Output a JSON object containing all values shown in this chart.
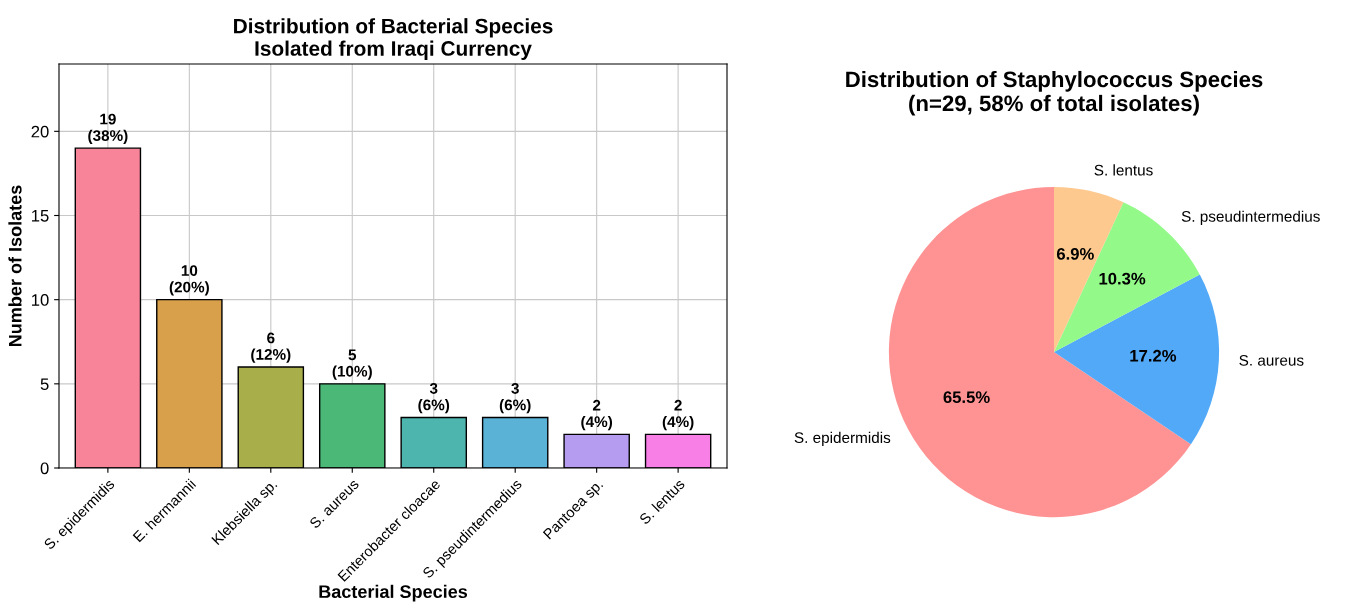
{
  "chart_data": [
    {
      "type": "bar",
      "title": "Distribution of Bacterial Species\nIsolated from Iraqi Currency",
      "xlabel": "Bacterial Species",
      "ylabel": "Number of Isolates",
      "categories": [
        "S. epidermidis",
        "E. hermannii",
        "Klebsiella sp.",
        "S. aureus",
        "Enterobacter cloacae",
        "S. pseudintermedius",
        "Pantoea sp.",
        "S. lentus"
      ],
      "values": [
        19,
        10,
        6,
        5,
        3,
        3,
        2,
        2
      ],
      "value_labels": [
        "19\n(38%)",
        "10\n(20%)",
        "6\n(12%)",
        "5\n(10%)",
        "3\n(6%)",
        "3\n(6%)",
        "2\n(4%)",
        "2\n(4%)"
      ],
      "colors": [
        "#f8849a",
        "#d9a04c",
        "#a8ae4a",
        "#4cb878",
        "#4db5ad",
        "#5ab2d6",
        "#b59cf0",
        "#f77fe5"
      ],
      "ylim": [
        0,
        24
      ],
      "yticks": [
        0,
        5,
        10,
        15,
        20
      ],
      "grid": true
    },
    {
      "type": "pie",
      "title": "Distribution of Staphylococcus Species\n(n=29, 58% of total isolates)",
      "categories": [
        "S. epidermidis",
        "S. aureus",
        "S. pseudintermedius",
        "S. lentus"
      ],
      "values": [
        65.5,
        17.2,
        10.3,
        6.9
      ],
      "value_labels": [
        "65.5%",
        "17.2%",
        "10.3%",
        "6.9%"
      ],
      "colors": [
        "#ff9393",
        "#52a9f7",
        "#93fa8a",
        "#fdc98f"
      ]
    }
  ]
}
